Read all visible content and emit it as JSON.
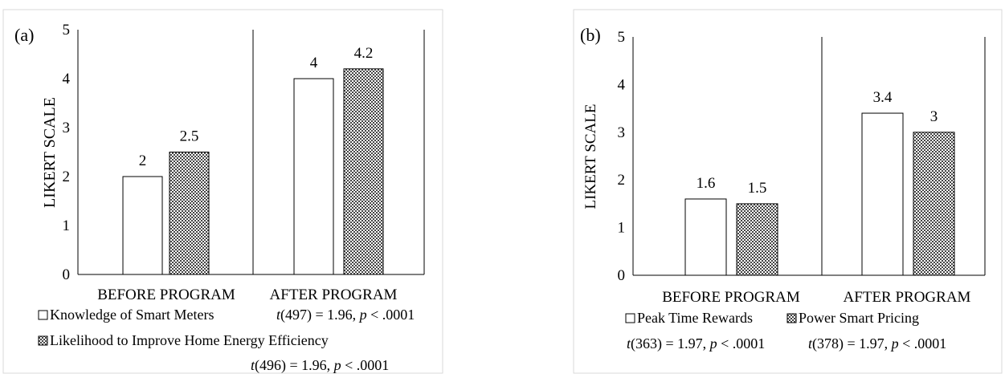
{
  "chart_data": [
    {
      "type": "bar",
      "panel_label": "(a)",
      "ylabel": "LIKERT SCALE",
      "ylim": [
        0,
        5
      ],
      "yticks": [
        "0",
        "1",
        "2",
        "3",
        "4",
        "5"
      ],
      "categories": [
        "BEFORE PROGRAM",
        "AFTER PROGRAM"
      ],
      "series": [
        {
          "name": "Knowledge of Smart Meters",
          "values": [
            2,
            4
          ],
          "labels": [
            "2",
            "4"
          ],
          "pattern": "white"
        },
        {
          "name": "Likelihood to Improve Home Energy Efficiency",
          "values": [
            2.5,
            4.2
          ],
          "labels": [
            "2.5",
            "4.2"
          ],
          "pattern": "dots"
        }
      ],
      "stats": [
        {
          "t": "t",
          "rest": "(497) = 1.96, ",
          "p": "p",
          "tail": " < .0001"
        },
        {
          "t": "t",
          "rest": "(496) = 1.96, ",
          "p": "p",
          "tail": " < .0001"
        }
      ],
      "grid": false,
      "legend_placement": "bottom"
    },
    {
      "type": "bar",
      "panel_label": "(b)",
      "ylabel": "LIKERT SCALE",
      "ylim": [
        0,
        5
      ],
      "yticks": [
        "0",
        "1",
        "2",
        "3",
        "4",
        "5"
      ],
      "categories": [
        "BEFORE PROGRAM",
        "AFTER PROGRAM"
      ],
      "series": [
        {
          "name": "Peak Time Rewards",
          "values": [
            1.6,
            3.4
          ],
          "labels": [
            "1.6",
            "3.4"
          ],
          "pattern": "white"
        },
        {
          "name": "Power Smart Pricing",
          "values": [
            1.5,
            3
          ],
          "labels": [
            "1.5",
            "3"
          ],
          "pattern": "dots"
        }
      ],
      "stats": [
        {
          "t": "t",
          "rest": "(363) = 1.97, ",
          "p": "p",
          "tail": " < .0001"
        },
        {
          "t": "t",
          "rest": "(378) = 1.97, ",
          "p": "p",
          "tail": " < .0001"
        }
      ],
      "grid": false,
      "legend_placement": "bottom"
    }
  ]
}
